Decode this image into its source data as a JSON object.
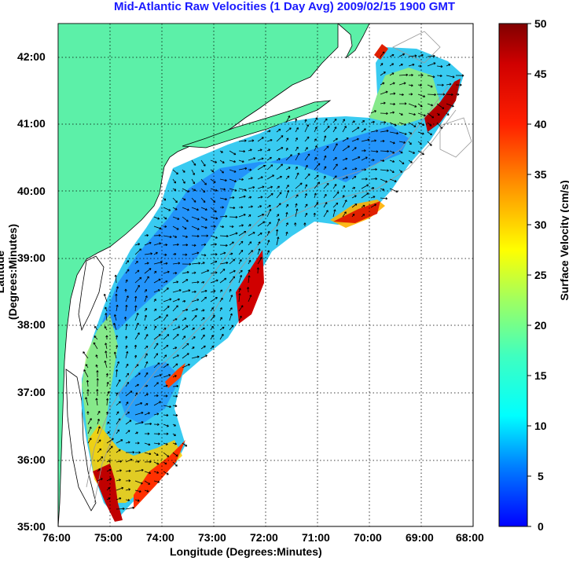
{
  "title": "Mid-Atlantic Raw Velocities (1 Day Avg) 2009/02/15 1900 GMT",
  "x_axis_label": "Longitude (Degrees:Minutes)",
  "y_axis_label": "Latitude (Degrees:Minutes)",
  "x_ticks": [
    "76:00",
    "75:00",
    "74:00",
    "73:00",
    "72:00",
    "71:00",
    "70:00",
    "69:00",
    "68:00"
  ],
  "y_ticks": [
    "42:00",
    "41:00",
    "40:00",
    "39:00",
    "38:00",
    "37:00",
    "36:00",
    "35:00"
  ],
  "colorbar": {
    "label": "Surface Velocity (cm/s)",
    "ticks": [
      "50",
      "45",
      "40",
      "35",
      "30",
      "25",
      "20",
      "15",
      "10",
      "5",
      "0"
    ],
    "min": 0,
    "max": 50
  },
  "colors": {
    "land": "#5cf0a8",
    "water": "#ffffff",
    "title": "#1a1aff",
    "grid": "#000000",
    "coast_line": "#000000",
    "bathymetry": "#999999",
    "vector": "#000000"
  },
  "map": {
    "lon_range": [
      -76,
      -68
    ],
    "lat_range": [
      35,
      42.5
    ],
    "grid": "dotted"
  }
}
